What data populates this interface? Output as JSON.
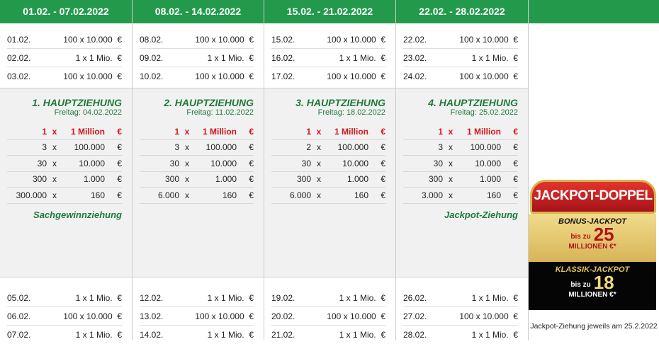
{
  "weeks": [
    {
      "header": "01.02. - 07.02.2022",
      "top": [
        [
          "01.02.",
          "100 x 10.000  €"
        ],
        [
          "02.02.",
          "1 x 1 Mio.  €"
        ],
        [
          "03.02.",
          "100 x 10.000  €"
        ]
      ],
      "title": "1. HAUPTZIEHUNG",
      "subtitle": "Freitag: 04.02.2022",
      "prizes": [
        [
          "1",
          "x",
          "1 Million",
          "€"
        ],
        [
          "3",
          "x",
          "100.000",
          "€"
        ],
        [
          "30",
          "x",
          "10.000",
          "€"
        ],
        [
          "300",
          "x",
          "1.000",
          "€"
        ],
        [
          "300.000",
          "x",
          "160",
          "€"
        ]
      ],
      "footer": "Sachgewinnziehung",
      "bottom": [
        [
          "05.02.",
          "1 x 1 Mio.  €"
        ],
        [
          "06.02.",
          "100 x 10.000  €"
        ],
        [
          "07.02.",
          "1 x 1 Mio.  €"
        ]
      ]
    },
    {
      "header": "08.02. - 14.02.2022",
      "top": [
        [
          "08.02.",
          "100 x 10.000  €"
        ],
        [
          "09.02.",
          "1 x 1 Mio.  €"
        ],
        [
          "10.02.",
          "100 x 10.000  €"
        ]
      ],
      "title": "2. HAUPTZIEHUNG",
      "subtitle": "Freitag: 11.02.2022",
      "prizes": [
        [
          "1",
          "x",
          "1 Million",
          "€"
        ],
        [
          "3",
          "x",
          "100.000",
          "€"
        ],
        [
          "30",
          "x",
          "10.000",
          "€"
        ],
        [
          "300",
          "x",
          "1.000",
          "€"
        ],
        [
          "6.000",
          "x",
          "160",
          "€"
        ]
      ],
      "footer": "",
      "bottom": [
        [
          "12.02.",
          "1 x 1 Mio.  €"
        ],
        [
          "13.02.",
          "100 x 10.000  €"
        ],
        [
          "14.02.",
          "1 x 1 Mio.  €"
        ]
      ]
    },
    {
      "header": "15.02. - 21.02.2022",
      "top": [
        [
          "15.02.",
          "100 x 10.000  €"
        ],
        [
          "16.02.",
          "1 x 1 Mio.  €"
        ],
        [
          "17.02.",
          "100 x 10.000  €"
        ]
      ],
      "title": "3. HAUPTZIEHUNG",
      "subtitle": "Freitag: 18.02.2022",
      "prizes": [
        [
          "1",
          "x",
          "1 Million",
          "€"
        ],
        [
          "2",
          "x",
          "100.000",
          "€"
        ],
        [
          "30",
          "x",
          "10.000",
          "€"
        ],
        [
          "300",
          "x",
          "1.000",
          "€"
        ],
        [
          "6.000",
          "x",
          "160",
          "€"
        ]
      ],
      "footer": "",
      "bottom": [
        [
          "19.02.",
          "1 x 1 Mio.  €"
        ],
        [
          "20.02.",
          "100 x 10.000  €"
        ],
        [
          "21.02.",
          "1 x 1 Mio.  €"
        ]
      ]
    },
    {
      "header": "22.02. - 28.02.2022",
      "top": [
        [
          "22.02.",
          "100 x 10.000  €"
        ],
        [
          "23.02.",
          "1 x 1 Mio.  €"
        ],
        [
          "24.02.",
          "100 x 10.000  €"
        ]
      ],
      "title": "4. HAUPTZIEHUNG",
      "subtitle": "Freitag: 25.02.2022",
      "prizes": [
        [
          "1",
          "x",
          "1 Million",
          "€"
        ],
        [
          "3",
          "x",
          "100.000",
          "€"
        ],
        [
          "30",
          "x",
          "10.000",
          "€"
        ],
        [
          "300",
          "x",
          "1.000",
          "€"
        ],
        [
          "3.000",
          "x",
          "160",
          "€"
        ]
      ],
      "footer": "Jackpot-Ziehung",
      "bottom": [
        [
          "26.02.",
          "1 x 1 Mio.  €"
        ],
        [
          "27.02.",
          "100 x 10.000  €"
        ],
        [
          "28.02.",
          "1 x 1 Mio.  €"
        ]
      ]
    }
  ],
  "jackpot": {
    "badge": "JACKPOT-DOPPEL",
    "bonus_title": "BONUS-JACKPOT",
    "bonus_prefix": "bis zu",
    "bonus_amount": "25",
    "bonus_unit": "MILLIONEN €*",
    "klassik_title": "KLASSIK-JACKPOT",
    "klassik_prefix": "bis zu",
    "klassik_amount": "18",
    "klassik_unit": "MILLIONEN €*",
    "note": "Jackpot-Ziehung jeweils am 25.2.2022"
  },
  "colors": {
    "header_green": "#239a4b",
    "title_green": "#1d7a3c",
    "highlight_red": "#d3141c"
  }
}
